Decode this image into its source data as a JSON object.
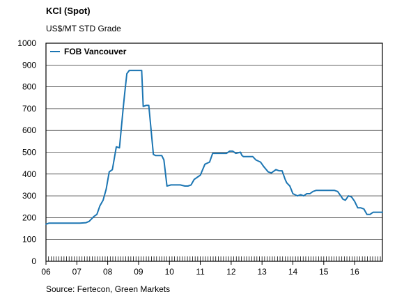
{
  "header": {
    "title": "KCl (Spot)",
    "subtitle": "US$/MT STD Grade"
  },
  "footer": {
    "source": "Source: Fertecon, Green Markets"
  },
  "chart_data": {
    "type": "line",
    "title": "KCl (Spot)",
    "ylabel": "US$/MT STD Grade",
    "xlabel": "",
    "ylim": [
      0,
      1000
    ],
    "yticks": [
      0,
      100,
      200,
      300,
      400,
      500,
      600,
      700,
      800,
      900,
      1000
    ],
    "xlim": [
      2006,
      2016.9
    ],
    "x_tick_labels": [
      "06",
      "07",
      "08",
      "09",
      "10",
      "11",
      "12",
      "13",
      "14",
      "15",
      "16"
    ],
    "x_tick_positions": [
      2006,
      2007,
      2008,
      2009,
      2010,
      2011,
      2012,
      2013,
      2014,
      2015,
      2016
    ],
    "grid": true,
    "legend_position": "top-left",
    "series": [
      {
        "name": "FOB Vancouver",
        "color": "#1b75b2",
        "x": [
          2006.0,
          2006.1,
          2006.5,
          2007.0,
          2007.1,
          2007.3,
          2007.4,
          2007.55,
          2007.65,
          2007.75,
          2007.85,
          2007.95,
          2008.05,
          2008.15,
          2008.28,
          2008.38,
          2008.5,
          2008.55,
          2008.62,
          2008.7,
          2008.8,
          2009.1,
          2009.15,
          2009.25,
          2009.33,
          2009.48,
          2009.55,
          2009.75,
          2009.82,
          2009.92,
          2010.05,
          2010.25,
          2010.35,
          2010.5,
          2010.6,
          2010.7,
          2010.8,
          2010.9,
          2011.0,
          2011.15,
          2011.3,
          2011.4,
          2011.5,
          2011.55,
          2011.7,
          2011.85,
          2011.95,
          2012.05,
          2012.15,
          2012.3,
          2012.35,
          2012.4,
          2012.55,
          2012.7,
          2012.8,
          2012.95,
          2013.05,
          2013.2,
          2013.3,
          2013.45,
          2013.55,
          2013.65,
          2013.75,
          2013.8,
          2013.9,
          2014.0,
          2014.15,
          2014.25,
          2014.35,
          2014.45,
          2014.55,
          2014.65,
          2014.75,
          2014.85,
          2015.0,
          2015.2,
          2015.35,
          2015.45,
          2015.55,
          2015.62,
          2015.7,
          2015.8,
          2015.9,
          2016.0,
          2016.1,
          2016.2,
          2016.3,
          2016.4,
          2016.5,
          2016.6,
          2016.9
        ],
        "y": [
          170,
          175,
          175,
          175,
          175,
          177,
          183,
          205,
          215,
          255,
          280,
          330,
          410,
          420,
          525,
          520,
          700,
          770,
          860,
          875,
          875,
          875,
          710,
          715,
          715,
          490,
          485,
          485,
          465,
          345,
          350,
          350,
          350,
          345,
          345,
          350,
          375,
          385,
          395,
          445,
          455,
          495,
          495,
          495,
          495,
          495,
          505,
          505,
          495,
          500,
          485,
          480,
          480,
          480,
          465,
          455,
          435,
          410,
          405,
          420,
          415,
          415,
          375,
          360,
          345,
          310,
          300,
          305,
          300,
          310,
          310,
          320,
          325,
          325,
          325,
          325,
          325,
          320,
          300,
          285,
          280,
          300,
          295,
          275,
          245,
          245,
          240,
          215,
          215,
          225,
          225
        ]
      }
    ]
  }
}
